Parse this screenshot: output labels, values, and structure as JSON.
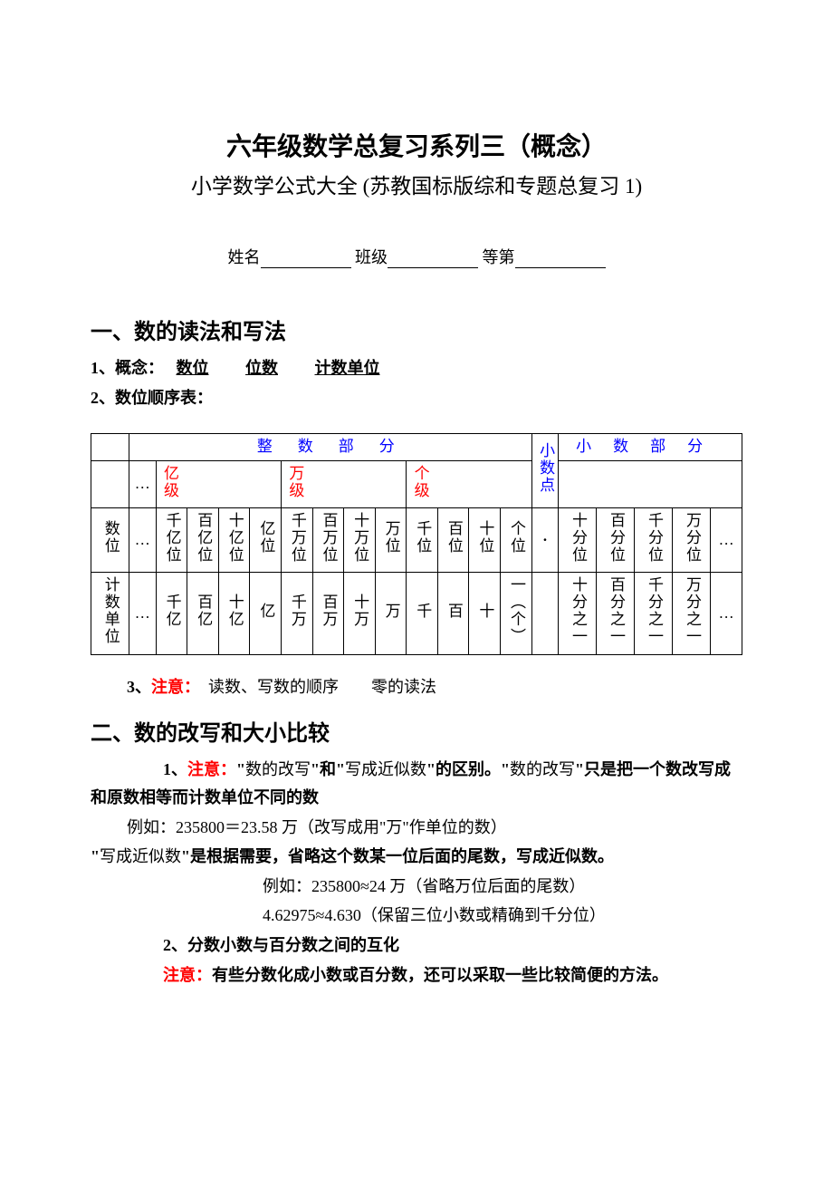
{
  "title": "六年级数学总复习系列三（概念）",
  "subtitle": "小学数学公式大全 (苏教国标版综和专题总复习 1)",
  "form": {
    "name_label": "姓名",
    "class_label": "班级",
    "grade_label": "等第"
  },
  "section1": {
    "header": "一、数的读法和写法",
    "line1a": "1、概念：　",
    "concept1": "数位",
    "concept2": "位数",
    "concept3": "计数单位",
    "line2": "2、数位顺序表：",
    "line3a": "3、",
    "line3_note": "注意：",
    "line3b": "　读数、写数的顺序　　零的读法"
  },
  "table": {
    "hdr_int": "整数部分",
    "hdr_dot": "小数点",
    "hdr_dec": "小数部分",
    "level_yi": "亿级",
    "level_wan": "万级",
    "level_ge": "个级",
    "row_label_pos": "数位",
    "row_label_unit": "计数单位",
    "ellipsis": "…",
    "dot": "·",
    "pos": {
      "qyi": "千亿位",
      "byi": "百亿位",
      "syi": "十亿位",
      "yi": "亿位",
      "qwan": "千万位",
      "bwan": "百万位",
      "swan": "十万位",
      "wan": "万位",
      "qian": "千位",
      "bai": "百位",
      "shi": "十位",
      "ge": "个位",
      "sf": "十分位",
      "bf": "百分位",
      "qf": "千分位",
      "wf": "万分位"
    },
    "unit": {
      "qyi": "千亿",
      "byi": "百亿",
      "syi": "十亿",
      "yi": "亿",
      "qwan": "千万",
      "bwan": "百万",
      "swan": "十万",
      "wan": "万",
      "qian": "千",
      "bai": "百",
      "shi": "十",
      "ge": "一︵个︶",
      "sf": "十分之一",
      "bf": "百分之一",
      "qf": "千分之一",
      "wf": "万分之一"
    }
  },
  "section2": {
    "header": "二、数的改写和大小比较",
    "p1_a": "1、",
    "p1_note": "注意：",
    "p1_b": "\"",
    "p1_c": "数的改写",
    "p1_d": "\"和\"",
    "p1_e": "写成近似数",
    "p1_f": "\"的区别。\"",
    "p1_g": "数的改写",
    "p1_h": "\"只是把一个数改写成和原数相等而计数单位不同的数",
    "ex1": "例如：235800＝23.58 万（改写成用\"万\"作单位的数）",
    "p2_a": "\"",
    "p2_b": "写成近似数",
    "p2_c": "\"是根据需要，省略这个数某一位后面的尾数，写成近似数。",
    "ex2": "例如：235800≈24 万（省略万位后面的尾数）",
    "ex3": "4.62975≈4.630（保留三位小数或精确到千分位）",
    "p3": "2、分数小数与百分数之间的互化",
    "p4_note": "注意：",
    "p4": "有些分数化成小数或百分数，还可以采取一些比较简便的方法。"
  }
}
